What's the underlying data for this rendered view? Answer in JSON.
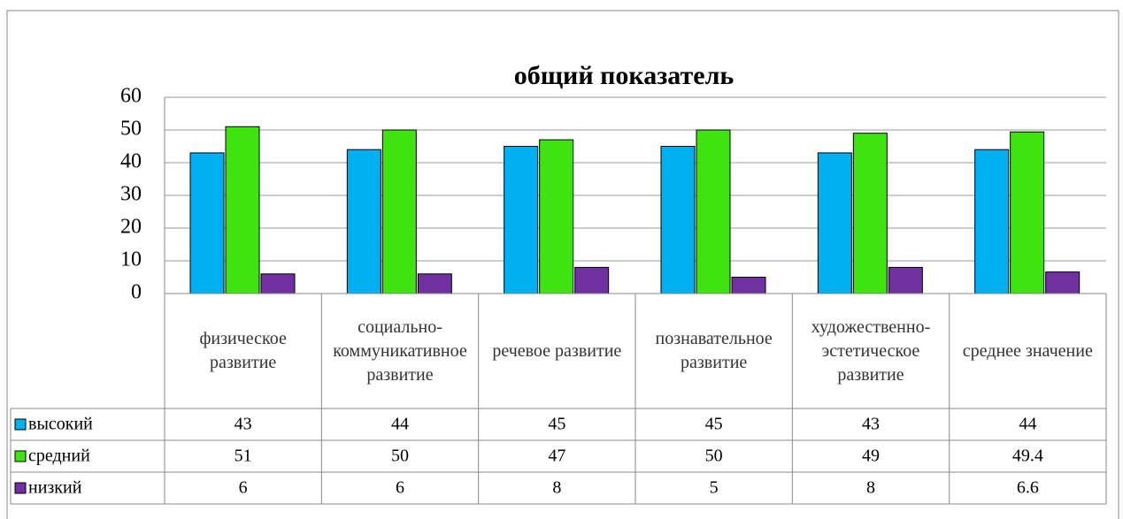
{
  "chart_data": {
    "type": "bar",
    "title": "общий показатель",
    "categories": [
      "физическое развитие",
      "социально-коммуникативное развитие",
      "речевое развитие",
      "познавательное развитие",
      "художественно-эстетическое развитие",
      "среднее значение"
    ],
    "series": [
      {
        "name": "высокий",
        "color": "#00b0f0",
        "values": [
          43,
          44,
          45,
          45,
          43,
          44
        ]
      },
      {
        "name": "средний",
        "color": "#3fe30f",
        "values": [
          51,
          50,
          47,
          50,
          49,
          49.4
        ]
      },
      {
        "name": "низкий",
        "color": "#7030a0",
        "values": [
          6,
          6,
          8,
          5,
          8,
          6.6
        ]
      }
    ],
    "ylim": [
      0,
      60
    ],
    "yticks": [
      0,
      10,
      20,
      30,
      40,
      50,
      60
    ],
    "grid": true,
    "data_table": true
  }
}
